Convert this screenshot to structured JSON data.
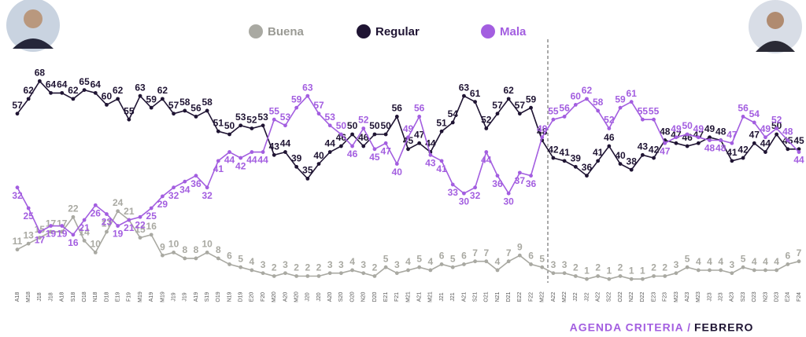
{
  "chart_data": {
    "type": "line",
    "legend_position": "top",
    "categories": [
      "A18",
      "M18",
      "J18",
      "J18",
      "A18",
      "S18",
      "O18",
      "N18",
      "D18",
      "E19",
      "F19",
      "M19",
      "A19",
      "M19",
      "J19",
      "J19",
      "A19",
      "S19",
      "O19",
      "N19",
      "D19",
      "E20",
      "F20",
      "M20",
      "A20",
      "M20",
      "J20",
      "J20",
      "A20",
      "S20",
      "O20",
      "N20",
      "D20",
      "E21",
      "F21",
      "M21",
      "A21",
      "M21",
      "J21",
      "J21",
      "A21",
      "S21",
      "O21",
      "N21",
      "D21",
      "E22",
      "F22",
      "M22",
      "A22",
      "M22",
      "J22",
      "J22",
      "A22",
      "S22",
      "O22",
      "N22",
      "D22",
      "E23",
      "F23",
      "M23",
      "A23",
      "M23",
      "J23",
      "J23",
      "A23",
      "S23",
      "O23",
      "N23",
      "D23",
      "E24",
      "F24"
    ],
    "series": [
      {
        "name": "Buena",
        "color": "#a9a9a2",
        "values": [
          11,
          13,
          15,
          17,
          17,
          22,
          14,
          10,
          17,
          24,
          21,
          15,
          16,
          9,
          10,
          8,
          8,
          10,
          8,
          6,
          5,
          4,
          3,
          2,
          3,
          2,
          2,
          2,
          3,
          3,
          4,
          3,
          2,
          5,
          3,
          4,
          5,
          4,
          6,
          5,
          6,
          7,
          7,
          4,
          7,
          9,
          6,
          5,
          3,
          3,
          2,
          1,
          2,
          1,
          2,
          1,
          1,
          2,
          2,
          3,
          5,
          4,
          4,
          4,
          3,
          5,
          4,
          4,
          4,
          6,
          7
        ]
      },
      {
        "name": "Regular",
        "color": "#1f1433",
        "values": [
          57,
          62,
          68,
          64,
          64,
          62,
          65,
          64,
          60,
          62,
          55,
          63,
          59,
          62,
          57,
          58,
          56,
          58,
          51,
          50,
          53,
          52,
          53,
          43,
          44,
          39,
          35,
          40,
          44,
          46,
          50,
          46,
          50,
          50,
          56,
          45,
          47,
          44,
          51,
          54,
          63,
          61,
          52,
          57,
          62,
          57,
          59,
          48,
          42,
          41,
          39,
          36,
          41,
          46,
          40,
          38,
          43,
          42,
          48,
          47,
          46,
          47,
          49,
          48,
          41,
          42,
          47,
          44,
          50,
          45,
          45
        ]
      },
      {
        "name": "Mala",
        "color": "#a35ee0",
        "values": [
          32,
          25,
          17,
          19,
          19,
          16,
          21,
          26,
          23,
          19,
          21,
          22,
          25,
          29,
          32,
          34,
          36,
          32,
          41,
          44,
          42,
          44,
          44,
          55,
          53,
          59,
          63,
          57,
          53,
          50,
          46,
          52,
          45,
          47,
          40,
          49,
          56,
          43,
          41,
          33,
          30,
          32,
          44,
          36,
          30,
          37,
          36,
          49,
          55,
          56,
          60,
          62,
          58,
          52,
          59,
          61,
          55,
          55,
          47,
          49,
          50,
          49,
          48,
          48,
          47,
          56,
          54,
          49,
          52,
          48,
          44
        ]
      }
    ],
    "ylim": [
      0,
      75
    ],
    "footer": {
      "source": "AGENDA CRITERIA /",
      "date": "FEBRERO"
    }
  }
}
